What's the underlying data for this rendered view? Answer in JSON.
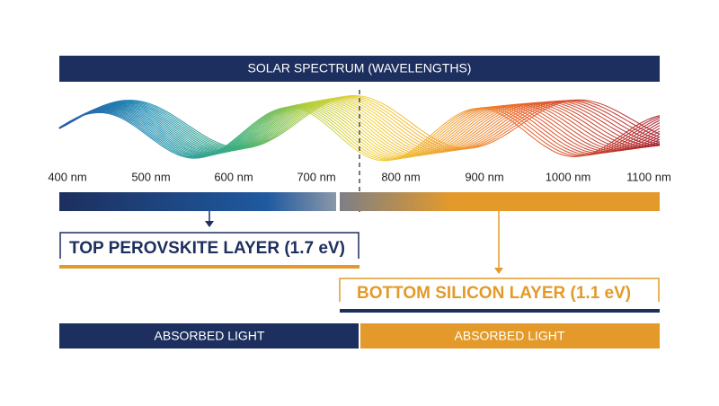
{
  "header": {
    "title": "SOLAR SPECTRUM (WAVELENGTHS)"
  },
  "wavelengths": [
    "400 nm",
    "500 nm",
    "600 nm",
    "700 nm",
    "800 nm",
    "900 nm",
    "1000 nm",
    "1100 nm"
  ],
  "top_layer": {
    "label": "TOP PEROVSKITE LAYER (1.7 eV)",
    "footer": "ABSORBED LIGHT"
  },
  "bottom_layer": {
    "label": "BOTTOM SILICON LAYER (1.1 eV)",
    "footer": "ABSORBED LIGHT"
  }
}
